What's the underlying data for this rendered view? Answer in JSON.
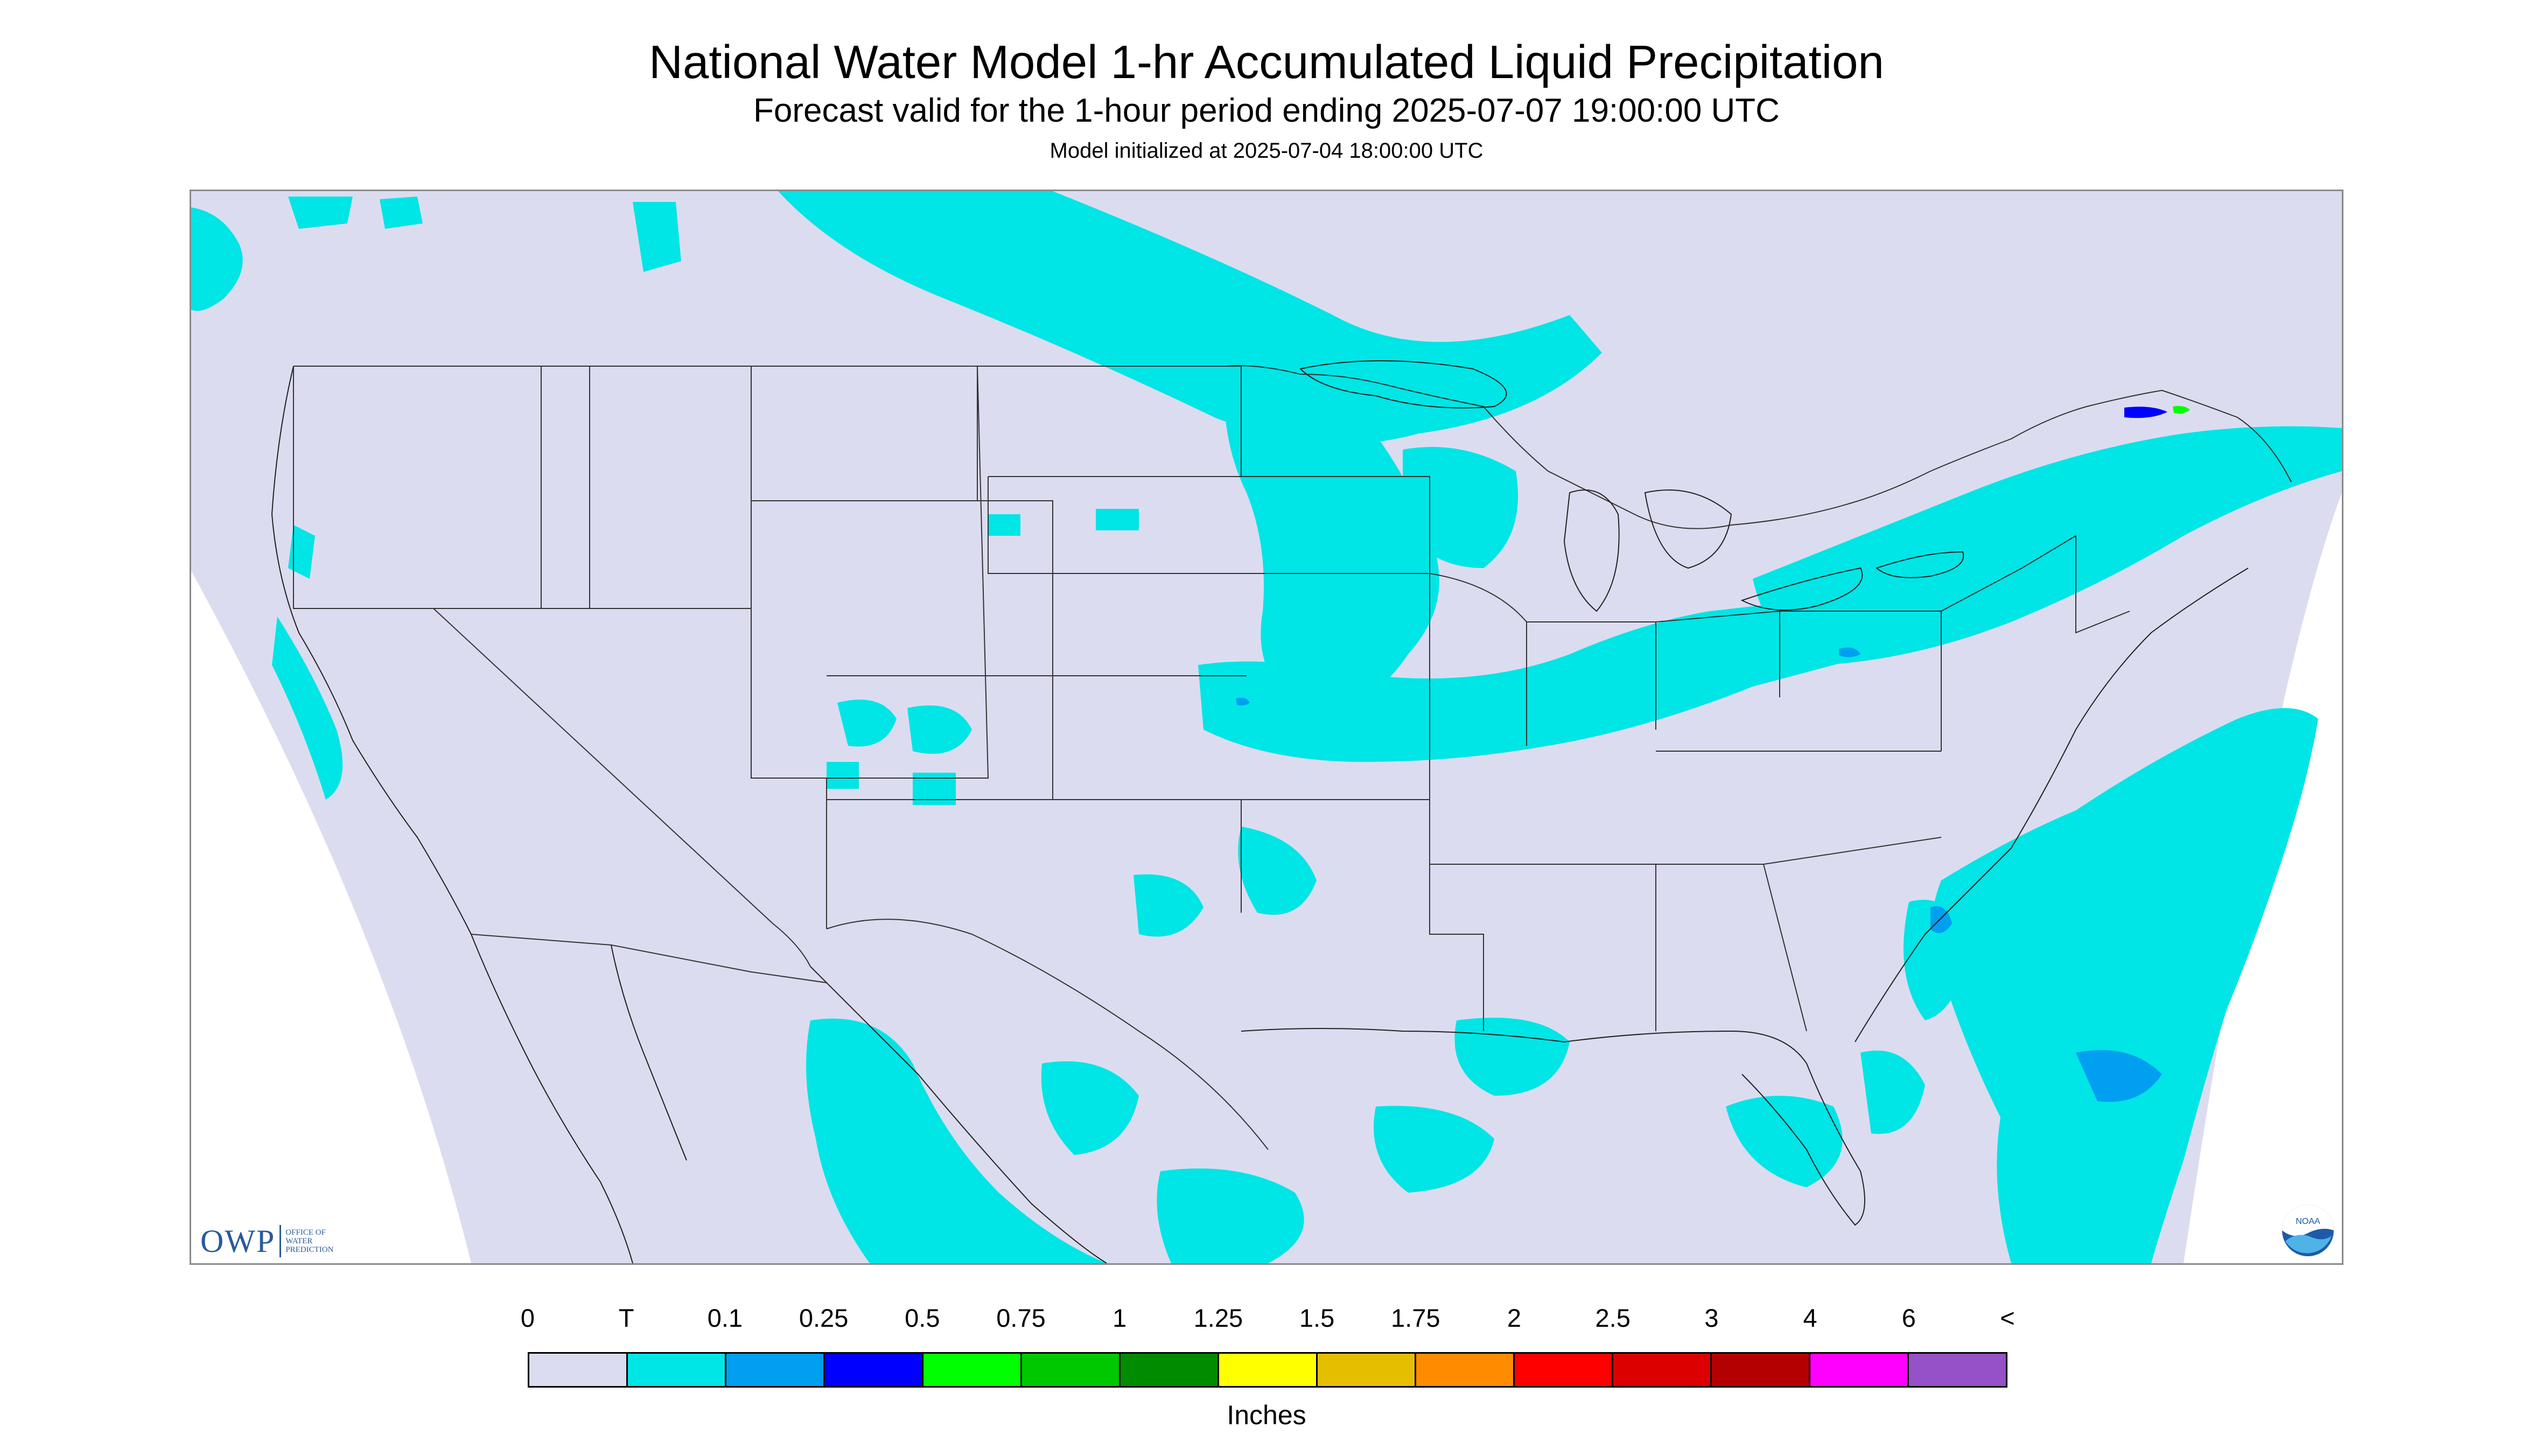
{
  "title": "National Water Model 1-hr Accumulated Liquid Precipitation",
  "subtitle": "Forecast valid for the 1-hour period ending 2025-07-07 19:00:00 UTC",
  "init_line": "Model initialized at 2025-07-04 18:00:00 UTC",
  "logos": {
    "owp_main": "OWP",
    "owp_sub_1": "OFFICE OF",
    "owp_sub_2": "WATER",
    "owp_sub_3": "PREDICTION",
    "noaa": "NOAA"
  },
  "colors": {
    "map_background": "#dcdcf0",
    "outside_projection": "#ffffff",
    "boundary_lines": "#333333",
    "precip_trace": "#00e5e5",
    "precip_0_1": "#009ff0",
    "precip_0_25": "#0000ff",
    "precip_0_5": "#00ff00"
  },
  "legend": {
    "units": "Inches",
    "labels": [
      "0",
      "T",
      "0.1",
      "0.25",
      "0.5",
      "0.75",
      "1",
      "1.25",
      "1.5",
      "1.75",
      "2",
      "2.5",
      "3",
      "4",
      "6",
      "<"
    ],
    "colors": [
      "#dcdcf0",
      "#00e5e5",
      "#009ff0",
      "#0000ff",
      "#00ff00",
      "#00c800",
      "#008c00",
      "#ffff00",
      "#e6be00",
      "#ff8c00",
      "#ff0000",
      "#dc0000",
      "#b40000",
      "#ff00ff",
      "#9650c8"
    ]
  }
}
